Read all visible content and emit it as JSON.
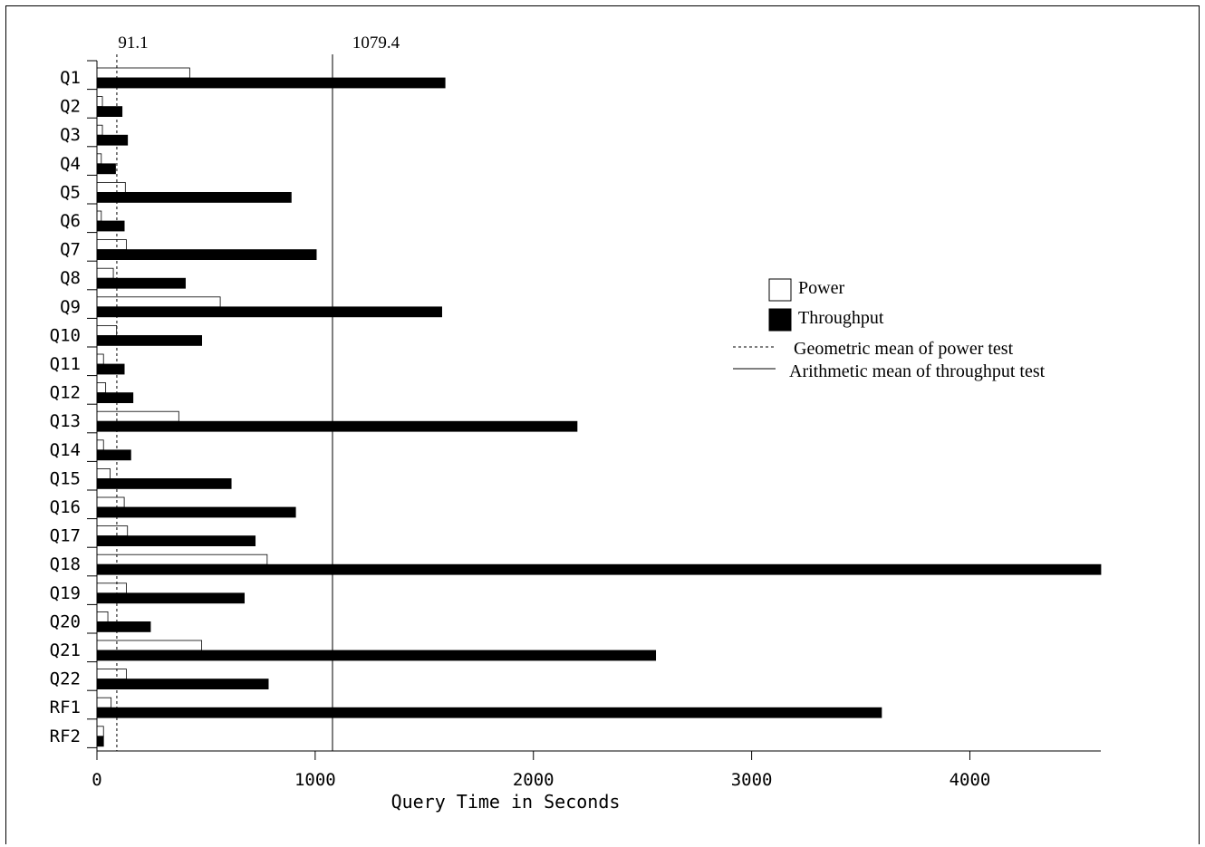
{
  "chart_data": {
    "type": "bar",
    "orientation": "horizontal",
    "xlabel": "Query Time in Seconds",
    "ylabel": "",
    "xlim": [
      0,
      4600
    ],
    "xticks": [
      0,
      1000,
      2000,
      3000,
      4000
    ],
    "categories": [
      "Q1",
      "Q2",
      "Q3",
      "Q4",
      "Q5",
      "Q6",
      "Q7",
      "Q8",
      "Q9",
      "Q10",
      "Q11",
      "Q12",
      "Q13",
      "Q14",
      "Q15",
      "Q16",
      "Q17",
      "Q18",
      "Q19",
      "Q20",
      "Q21",
      "Q22",
      "RF1",
      "RF2"
    ],
    "series": [
      {
        "name": "Power",
        "fill": "#ffffff",
        "values": [
          425,
          25,
          25,
          20,
          130,
          20,
          135,
          75,
          565,
          90,
          30,
          40,
          375,
          30,
          60,
          125,
          140,
          780,
          135,
          50,
          480,
          135,
          65,
          30
        ]
      },
      {
        "name": "Throughput",
        "fill": "#000000",
        "values": [
          1595,
          115,
          140,
          85,
          890,
          125,
          1005,
          405,
          1580,
          480,
          125,
          165,
          2200,
          155,
          615,
          910,
          725,
          4600,
          675,
          245,
          2560,
          785,
          3595,
          30
        ]
      }
    ],
    "reference_lines": [
      {
        "name": "Geometric mean of power test",
        "value": 91.1,
        "label": "91.1",
        "style": "dashed"
      },
      {
        "name": "Arithmetic mean of throughput test",
        "value": 1079.4,
        "label": "1079.4",
        "style": "solid"
      }
    ],
    "legend": {
      "placement": "right",
      "entries": [
        "Power",
        "Throughput",
        "Geometric mean of power test",
        "Arithmetic mean of throughput test"
      ]
    },
    "grid": false
  }
}
